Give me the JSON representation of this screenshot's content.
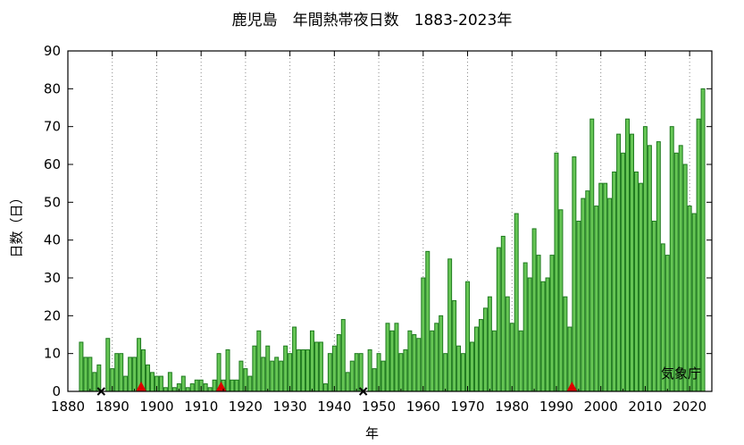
{
  "chart_data": {
    "type": "bar",
    "title": "鹿児島　年間熱帯夜日数　1883-2023年",
    "xlabel": "年",
    "ylabel": "日数（日）",
    "credit": "気象庁",
    "xlim": [
      1880,
      2025
    ],
    "ylim": [
      0,
      90
    ],
    "xticks": [
      1880,
      1890,
      1900,
      1910,
      1920,
      1930,
      1940,
      1950,
      1960,
      1970,
      1980,
      1990,
      2000,
      2010,
      2020
    ],
    "yticks": [
      0,
      10,
      20,
      30,
      40,
      50,
      60,
      70,
      80,
      90
    ],
    "grid": "vertical dotted at x ticks",
    "bar_color": "#66c655",
    "bar_edge_color": "#1e7a1e",
    "years": [
      1883,
      1884,
      1885,
      1886,
      1887,
      1888,
      1889,
      1890,
      1891,
      1892,
      1893,
      1894,
      1895,
      1896,
      1897,
      1898,
      1899,
      1900,
      1901,
      1902,
      1903,
      1904,
      1905,
      1906,
      1907,
      1908,
      1909,
      1910,
      1911,
      1912,
      1913,
      1914,
      1915,
      1916,
      1917,
      1918,
      1919,
      1920,
      1921,
      1922,
      1923,
      1924,
      1925,
      1926,
      1927,
      1928,
      1929,
      1930,
      1931,
      1932,
      1933,
      1934,
      1935,
      1936,
      1937,
      1938,
      1939,
      1940,
      1941,
      1942,
      1943,
      1944,
      1945,
      1946,
      1947,
      1948,
      1949,
      1950,
      1951,
      1952,
      1953,
      1954,
      1955,
      1956,
      1957,
      1958,
      1959,
      1960,
      1961,
      1962,
      1963,
      1964,
      1965,
      1966,
      1967,
      1968,
      1969,
      1970,
      1971,
      1972,
      1973,
      1974,
      1975,
      1976,
      1977,
      1978,
      1979,
      1980,
      1981,
      1982,
      1983,
      1984,
      1985,
      1986,
      1987,
      1988,
      1989,
      1990,
      1991,
      1992,
      1993,
      1994,
      1995,
      1996,
      1997,
      1998,
      1999,
      2000,
      2001,
      2002,
      2003,
      2004,
      2005,
      2006,
      2007,
      2008,
      2009,
      2010,
      2011,
      2012,
      2013,
      2014,
      2015,
      2016,
      2017,
      2018,
      2019,
      2020,
      2021,
      2022,
      2023
    ],
    "values": [
      13,
      9,
      9,
      5,
      7,
      0,
      14,
      6,
      10,
      10,
      4,
      9,
      9,
      14,
      11,
      7,
      5,
      4,
      4,
      1,
      5,
      1,
      2,
      4,
      1,
      2,
      3,
      3,
      2,
      1,
      3,
      10,
      3,
      11,
      3,
      3,
      8,
      6,
      4,
      12,
      16,
      9,
      12,
      8,
      9,
      8,
      12,
      10,
      17,
      11,
      11,
      11,
      16,
      13,
      13,
      2,
      10,
      12,
      15,
      19,
      5,
      8,
      10,
      10,
      0,
      11,
      6,
      10,
      8,
      18,
      16,
      18,
      10,
      11,
      16,
      15,
      14,
      30,
      37,
      16,
      18,
      20,
      10,
      35,
      24,
      12,
      10,
      29,
      13,
      17,
      19,
      22,
      25,
      16,
      38,
      41,
      25,
      18,
      47,
      16,
      34,
      30,
      43,
      36,
      29,
      30,
      36,
      63,
      48,
      25,
      17,
      62,
      45,
      51,
      53,
      72,
      49,
      55,
      55,
      51,
      58,
      68,
      63,
      72,
      68,
      58,
      55,
      70,
      65,
      45,
      66,
      39,
      36,
      70,
      63,
      65,
      60,
      49,
      47,
      72,
      80
    ],
    "markers": [
      {
        "type": "cross",
        "color": "#000000",
        "x": 1887.5,
        "y": 0
      },
      {
        "type": "cross",
        "color": "#000000",
        "x": 1946.5,
        "y": 0
      },
      {
        "type": "triangle",
        "color": "#dd0000",
        "x": 1896.5,
        "y": 0
      },
      {
        "type": "triangle",
        "color": "#dd0000",
        "x": 1914.5,
        "y": 0
      },
      {
        "type": "triangle",
        "color": "#dd0000",
        "x": 1993.5,
        "y": 0
      }
    ]
  }
}
